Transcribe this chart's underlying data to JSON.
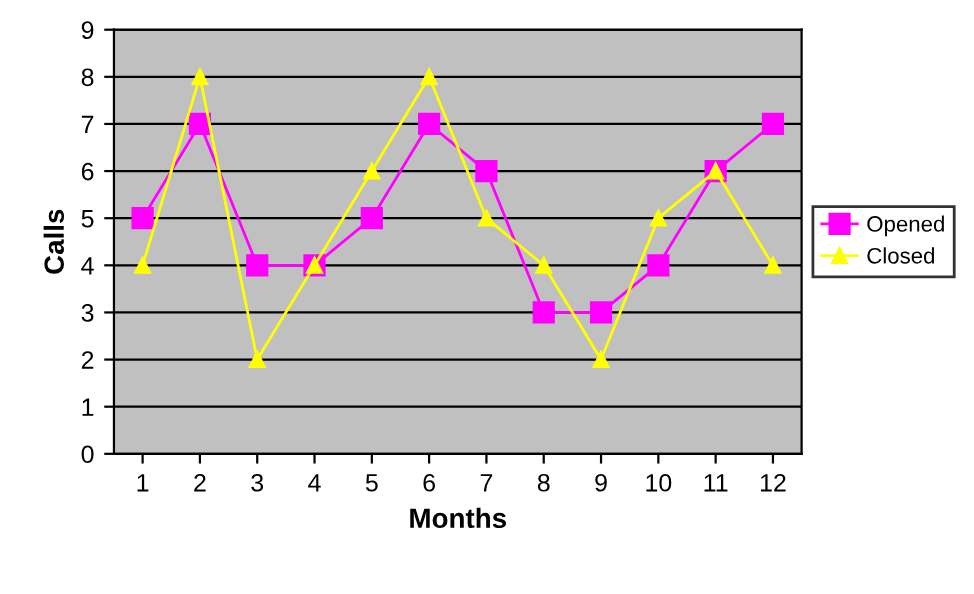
{
  "chart_data": {
    "type": "line",
    "xlabel": "Months",
    "ylabel": "Calls",
    "categories": [
      "1",
      "2",
      "3",
      "4",
      "5",
      "6",
      "7",
      "8",
      "9",
      "10",
      "11",
      "12"
    ],
    "series": [
      {
        "name": "Opened",
        "color": "#ff00ff",
        "marker": "square",
        "values": [
          5,
          7,
          4,
          4,
          5,
          7,
          6,
          3,
          3,
          4,
          6,
          7
        ]
      },
      {
        "name": "Closed",
        "color": "#ffff00",
        "marker": "triangle",
        "values": [
          4,
          8,
          2,
          4,
          6,
          8,
          5,
          4,
          2,
          5,
          6,
          4
        ]
      }
    ],
    "ylim": [
      0,
      9
    ],
    "yticks": [
      0,
      1,
      2,
      3,
      4,
      5,
      6,
      7,
      8,
      9
    ],
    "grid": "y",
    "legend": "right",
    "line_style": "solid"
  }
}
